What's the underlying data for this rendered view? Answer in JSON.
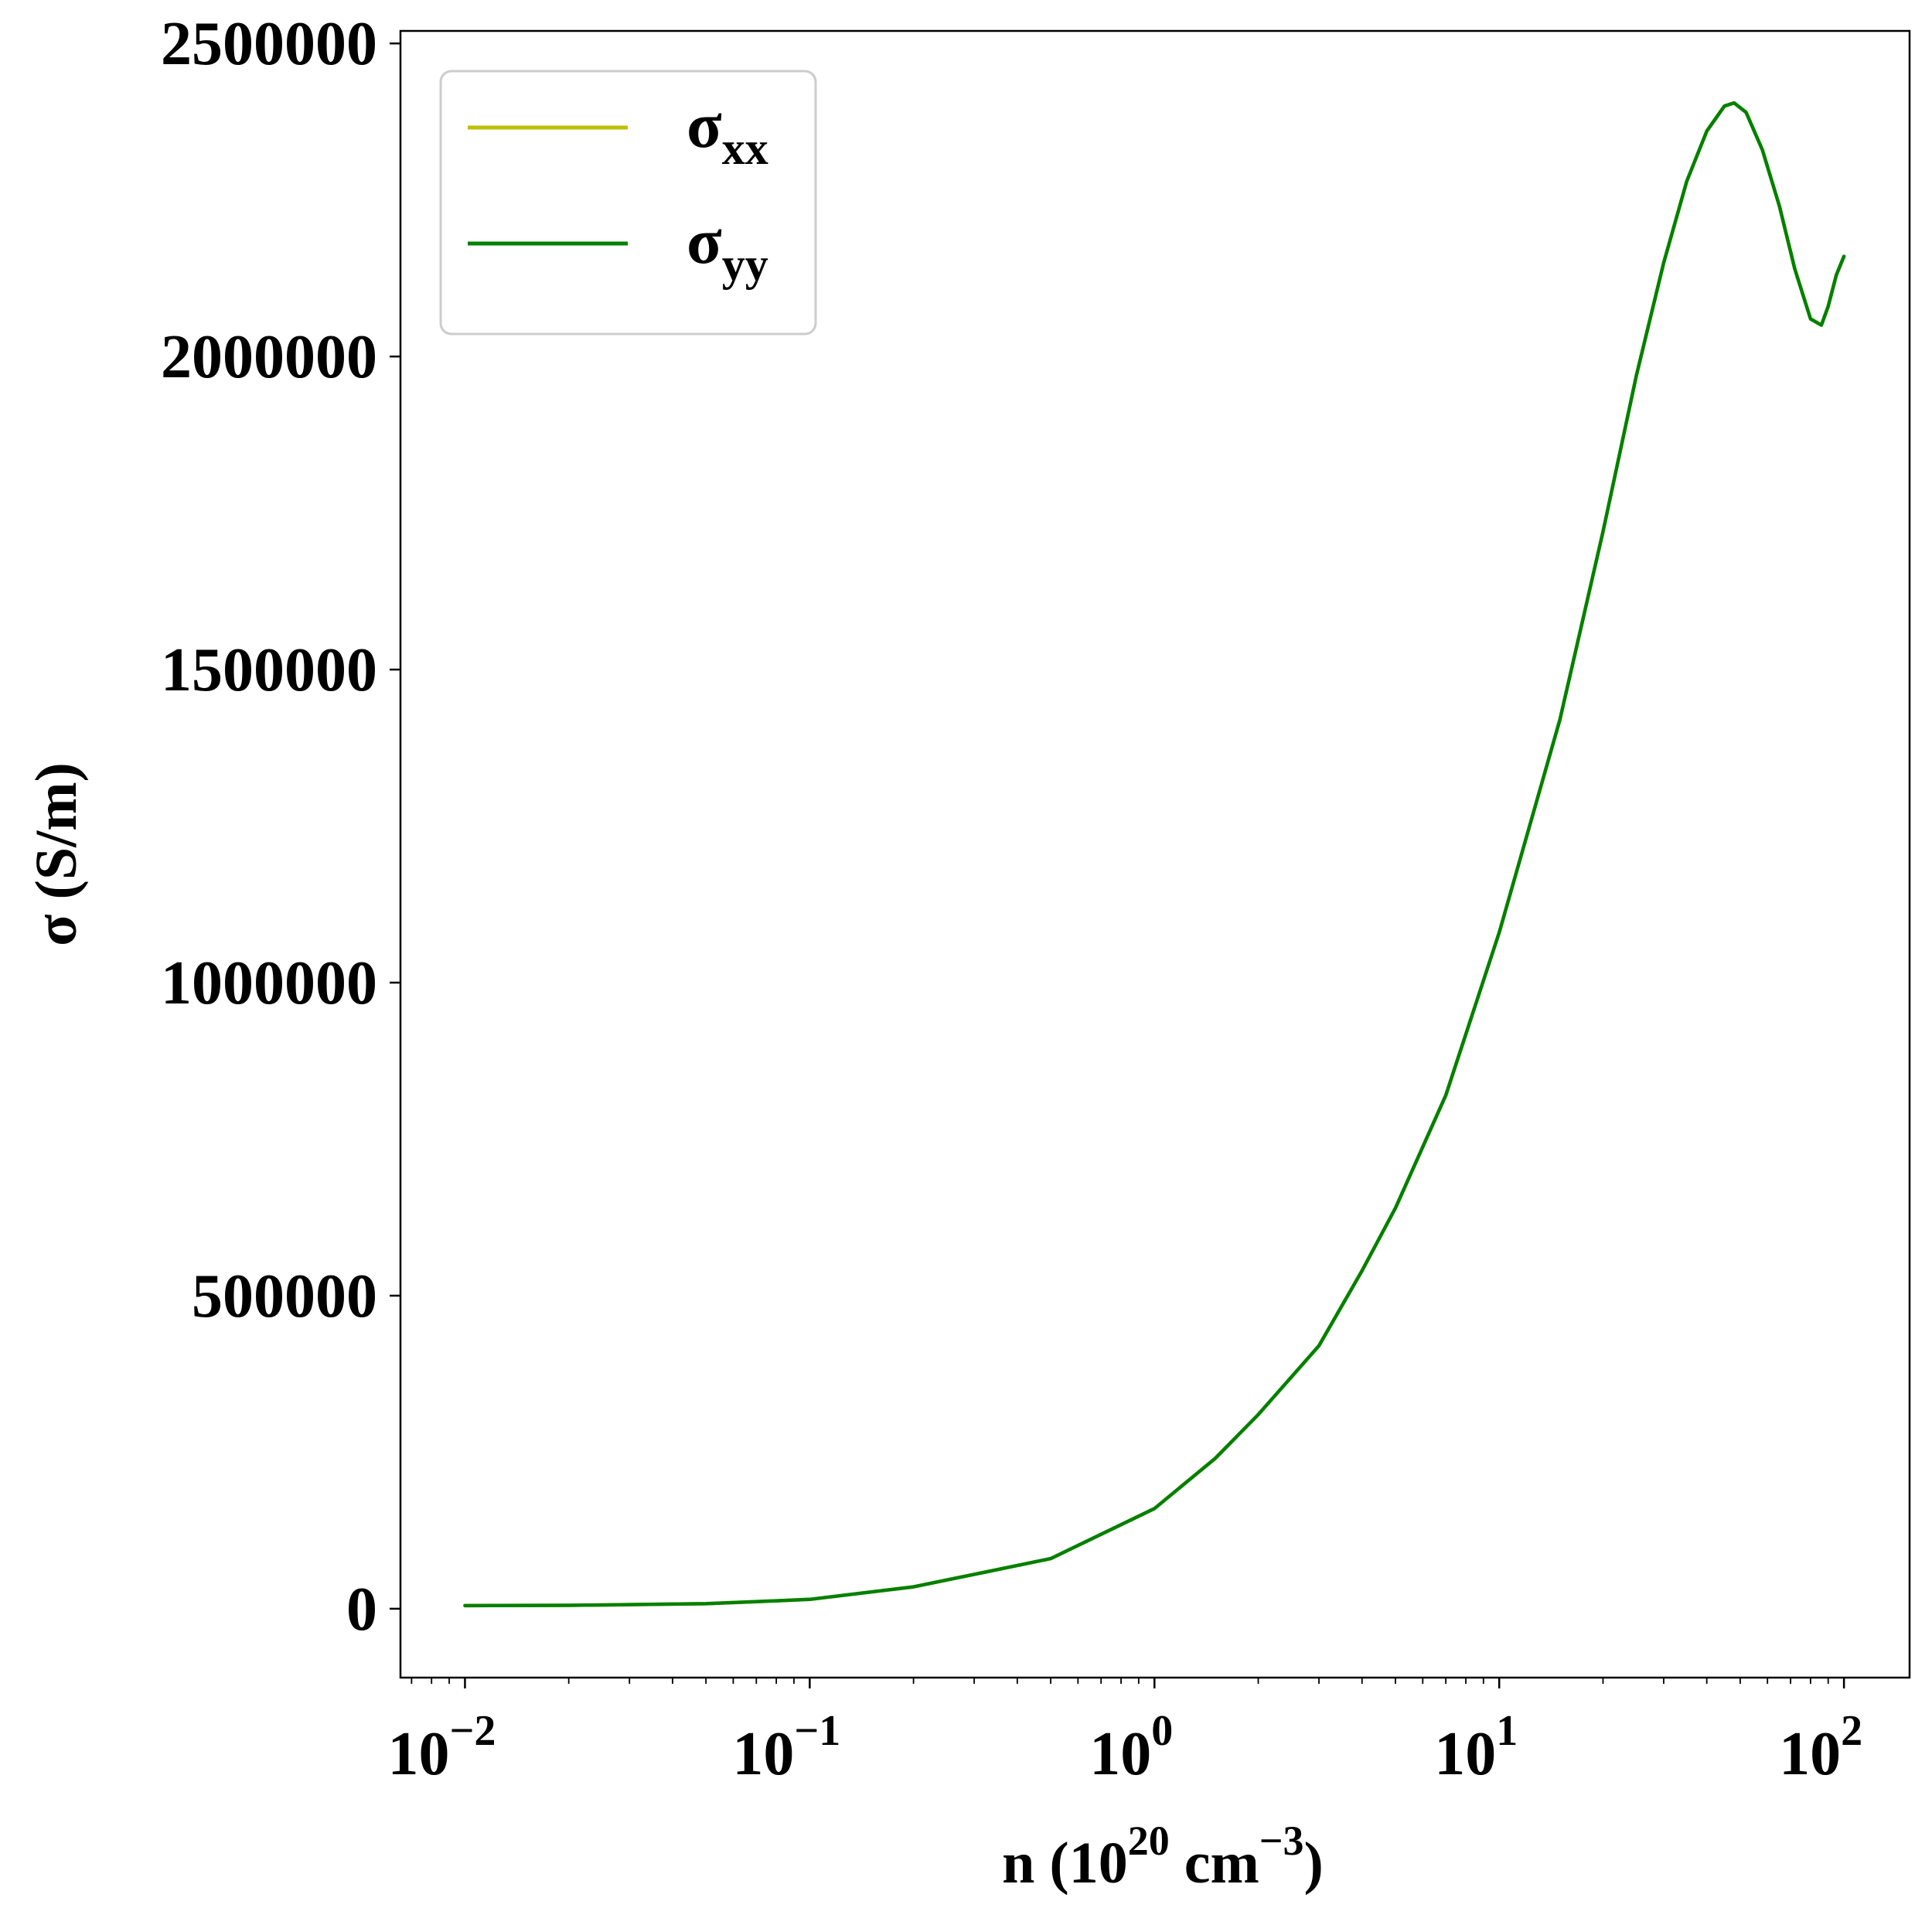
{
  "chart_data": {
    "type": "line",
    "title": "",
    "xlabel": {
      "base": "n (10",
      "exp1": "20",
      "mid": " cm",
      "exp2": "−3",
      "end": ")"
    },
    "ylabel": "σ (S/m)",
    "xscale": "log",
    "xlim": [
      0.0065,
      155
    ],
    "ylim": [
      -110000,
      2520000
    ],
    "grid": false,
    "legend_position": "top-left",
    "x_ticks": [
      {
        "value": 0.01,
        "base": "10",
        "exp": "−2"
      },
      {
        "value": 0.1,
        "base": "10",
        "exp": "−1"
      },
      {
        "value": 1,
        "base": "10",
        "exp": "0"
      },
      {
        "value": 10,
        "base": "10",
        "exp": "1"
      },
      {
        "value": 100,
        "base": "10",
        "exp": "2"
      }
    ],
    "y_ticks": [
      {
        "value": 0,
        "label": "0"
      },
      {
        "value": 500000,
        "label": "500000"
      },
      {
        "value": 1000000,
        "label": "1000000"
      },
      {
        "value": 1500000,
        "label": "1500000"
      },
      {
        "value": 2000000,
        "label": "2000000"
      },
      {
        "value": 2500000,
        "label": "2500000"
      }
    ],
    "series": [
      {
        "name": "σ",
        "subscript": "xx",
        "color": "#bfbf00",
        "x": [
          0.01,
          0.02,
          0.05,
          0.1,
          0.2,
          0.5,
          1,
          1.5,
          2,
          3,
          4,
          5,
          7,
          10,
          15,
          20,
          25,
          30,
          35,
          40,
          45,
          48,
          52,
          58,
          65,
          72,
          80,
          86,
          90,
          95,
          100
        ],
        "y": [
          5000,
          5500,
          8000,
          15000,
          35000,
          80000,
          160000,
          240000,
          310000,
          420000,
          540000,
          640000,
          820000,
          1080000,
          1420000,
          1720000,
          1970000,
          2150000,
          2280000,
          2360000,
          2400000,
          2405000,
          2390000,
          2330000,
          2240000,
          2140000,
          2060000,
          2050000,
          2080000,
          2130000,
          2160000
        ]
      },
      {
        "name": "σ",
        "subscript": "yy",
        "color": "#008000",
        "x": [
          0.01,
          0.02,
          0.05,
          0.1,
          0.2,
          0.5,
          1,
          1.5,
          2,
          3,
          4,
          5,
          7,
          10,
          15,
          20,
          25,
          30,
          35,
          40,
          45,
          48,
          52,
          58,
          65,
          72,
          80,
          86,
          90,
          95,
          100
        ],
        "y": [
          5000,
          5500,
          8000,
          15000,
          35000,
          80000,
          160000,
          240000,
          310000,
          420000,
          540000,
          640000,
          820000,
          1080000,
          1420000,
          1720000,
          1970000,
          2150000,
          2280000,
          2360000,
          2400000,
          2405000,
          2390000,
          2330000,
          2240000,
          2140000,
          2060000,
          2050000,
          2080000,
          2130000,
          2160000
        ]
      }
    ]
  }
}
